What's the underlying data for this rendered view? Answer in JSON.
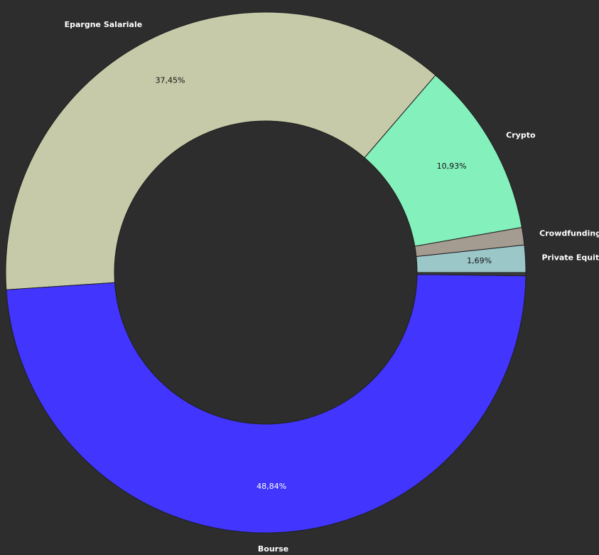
{
  "chart_data": {
    "type": "pie",
    "donut": true,
    "categories": [
      "Private Equity",
      "Crowdfunding",
      "Crypto",
      "Epargne Salariale",
      "Bourse",
      ""
    ],
    "values": [
      1.69,
      1.09,
      10.93,
      37.45,
      48.84,
      0.2
    ],
    "data_labels": [
      "1,69%",
      "",
      "10,93%",
      "37,45%",
      "48,84%",
      ""
    ],
    "colors": [
      "#9cc7c9",
      "#a49b91",
      "#84f0bc",
      "#c6caa8",
      "#4135fe",
      "#3b3b3b"
    ],
    "inner_color": "#2d2d2d",
    "background": "#2d2d2d",
    "start": "3 o'clock",
    "direction": "counterclockwise",
    "legend": "none"
  }
}
